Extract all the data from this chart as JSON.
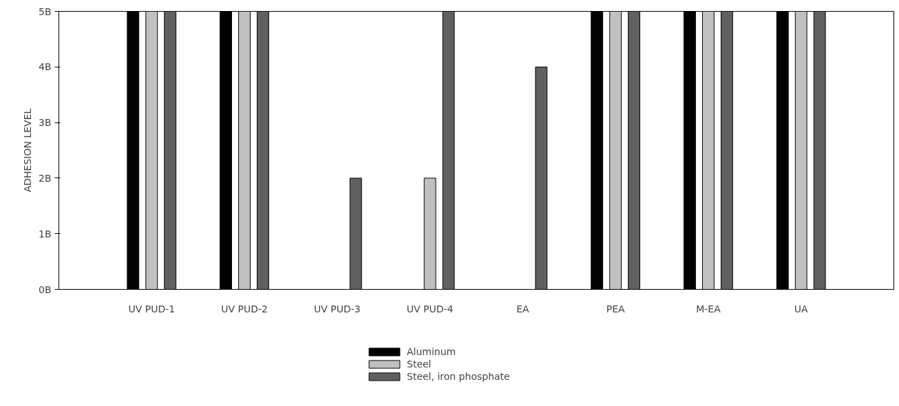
{
  "chart_data": {
    "type": "bar",
    "ylabel": "ADHESION LEVEL",
    "categories": [
      "UV PUD-1",
      "UV PUD-2",
      "UV PUD-3",
      "UV PUD-4",
      "EA",
      "PEA",
      "M-EA",
      "UA"
    ],
    "series": [
      {
        "name": "Aluminum",
        "color": "#000000",
        "values": [
          5,
          5,
          0,
          0,
          0,
          5,
          5,
          5
        ]
      },
      {
        "name": "Steel",
        "color": "#c0c0c0",
        "values": [
          5,
          5,
          0,
          2,
          0,
          5,
          5,
          5
        ]
      },
      {
        "name": "Steel, iron phosphate",
        "color": "#606060",
        "values": [
          5,
          5,
          2,
          5,
          4,
          5,
          5,
          5
        ]
      }
    ],
    "ylim": [
      0,
      5
    ],
    "yticks": [
      {
        "value": 0,
        "label": "0B"
      },
      {
        "value": 1,
        "label": "1B"
      },
      {
        "value": 2,
        "label": "2B"
      },
      {
        "value": 3,
        "label": "3B"
      },
      {
        "value": 4,
        "label": "4B"
      },
      {
        "value": 5,
        "label": "5B"
      }
    ],
    "grid": false,
    "legend": "bottom"
  }
}
